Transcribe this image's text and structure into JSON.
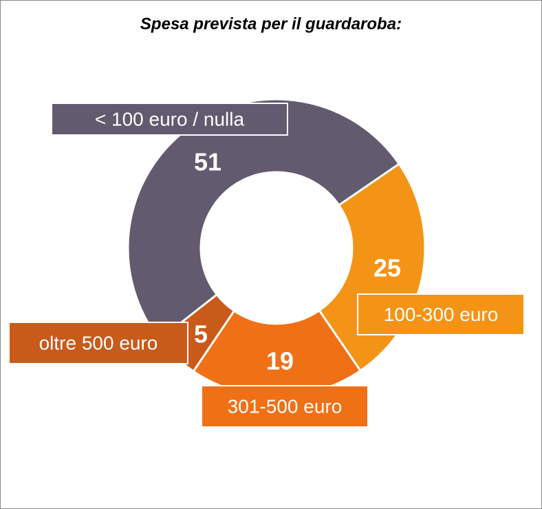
{
  "chart_data": {
    "type": "donut",
    "title": "Spesa prevista per il guardaroba:",
    "categories": [
      "< 100 euro / nulla",
      "100-300 euro",
      "301-500 euro",
      "oltre 500 euro"
    ],
    "values": [
      51,
      25,
      19,
      5
    ],
    "colors": [
      "#625a6e",
      "#f39416",
      "#f07016",
      "#c85a1a"
    ]
  }
}
